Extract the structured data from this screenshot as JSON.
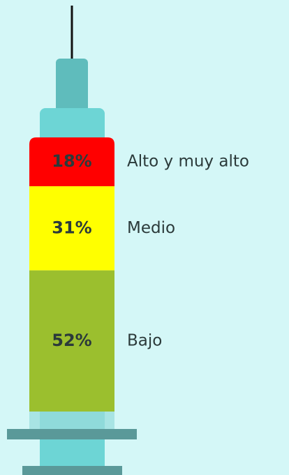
{
  "chart_data": {
    "type": "bar",
    "categories": [
      "Alto y muy alto",
      "Medio",
      "Bajo"
    ],
    "values": [
      18,
      31,
      52
    ],
    "value_labels": [
      "18%",
      "31%",
      "52%"
    ],
    "colors": [
      "#ff0000",
      "#ffff00",
      "#9bbf2e"
    ]
  }
}
